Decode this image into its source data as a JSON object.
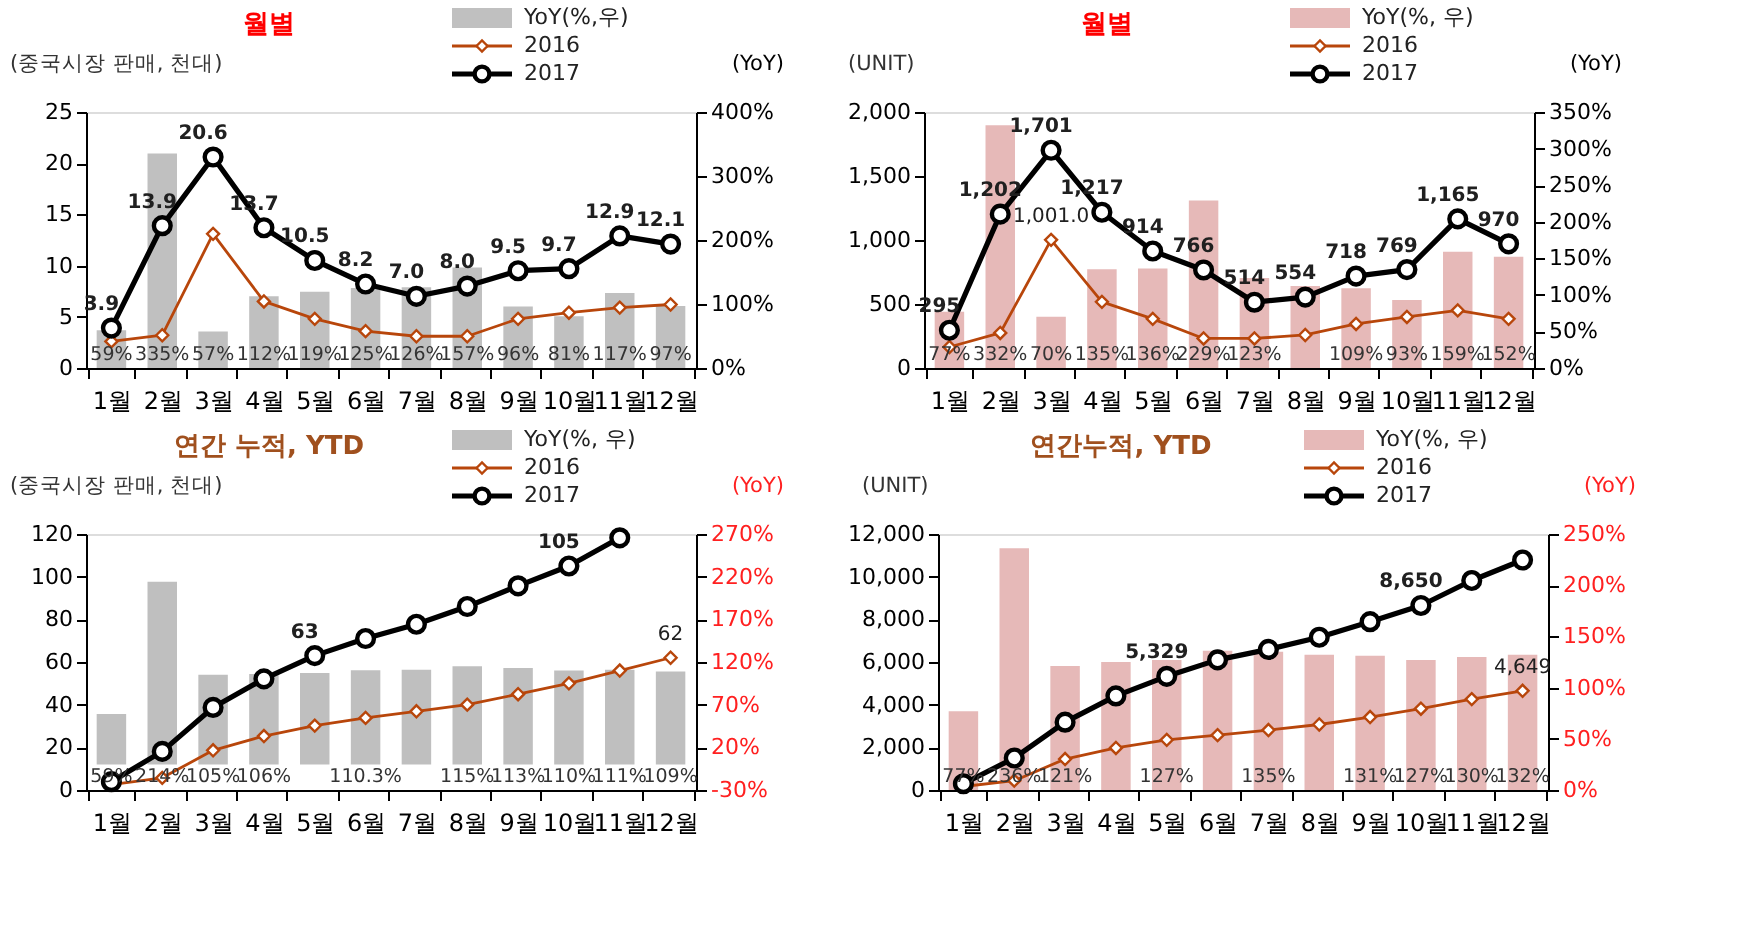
{
  "chart_data": [
    {
      "type": "line",
      "title": "월별",
      "ylabel": "(중국시장 판매, 천대)",
      "y2label": "(YoY)",
      "legend": "top right",
      "categories": [
        "1월",
        "2월",
        "3월",
        "4월",
        "5월",
        "6월",
        "7월",
        "8월",
        "9월",
        "10월",
        "11월",
        "12월"
      ],
      "ylim": [
        0,
        25
      ],
      "yticks": [
        0,
        5,
        10,
        15,
        20,
        25
      ],
      "y2lim": [
        0,
        400
      ],
      "y2ticks": [
        {
          "value": 0,
          "label": "0%"
        },
        {
          "value": 100,
          "label": "100%"
        },
        {
          "value": 200,
          "label": "200%"
        },
        {
          "value": 300,
          "label": "300%"
        },
        {
          "value": 400,
          "label": "400%"
        }
      ],
      "series": [
        {
          "name": "YoY(%,우)",
          "type": "bar",
          "axis": "y2",
          "color": "#c0c0c0",
          "values": [
            59,
            335,
            57,
            112,
            119,
            125,
            126,
            157,
            96,
            81,
            117,
            97
          ],
          "value_labels": [
            "59%",
            "335%",
            "57%",
            "112%",
            "119%",
            "125%",
            "126%",
            "157%",
            "96%",
            "81%",
            "117%",
            "97%"
          ]
        },
        {
          "name": "2016",
          "marker": "diamond",
          "color": "#b8460b",
          "values": [
            2.6,
            3.2,
            13.1,
            6.5,
            4.8,
            3.6,
            3.1,
            3.1,
            4.8,
            5.4,
            5.9,
            6.2
          ]
        },
        {
          "name": "2017",
          "marker": "circle",
          "color": "#000000",
          "values": [
            3.9,
            13.9,
            20.6,
            13.7,
            10.5,
            8.2,
            7.0,
            8.0,
            9.5,
            9.7,
            12.9,
            12.1
          ],
          "value_labels": [
            "3.9",
            "13.9",
            "20.6",
            "13.7",
            "10.5",
            "8.2",
            "7.0",
            "8.0",
            "9.5",
            "9.7",
            "12.9",
            "12.1"
          ]
        }
      ]
    },
    {
      "type": "line",
      "title": "월별",
      "ylabel": "(UNIT)",
      "y2label": "(YoY)",
      "legend": "top right",
      "categories": [
        "1월",
        "2월",
        "3월",
        "4월",
        "5월",
        "6월",
        "7월",
        "8월",
        "9월",
        "10월",
        "11월",
        "12월"
      ],
      "ylim": [
        0,
        2000
      ],
      "yticks": [
        0,
        500,
        {
          "value": 1000,
          "label": "1,000"
        },
        {
          "value": 1500,
          "label": "1,500"
        },
        {
          "value": 2000,
          "label": "2,000"
        }
      ],
      "y2lim": [
        0,
        350
      ],
      "y2ticks": [
        {
          "value": 0,
          "label": "0%"
        },
        {
          "value": 50,
          "label": "50%"
        },
        {
          "value": 100,
          "label": "100%"
        },
        {
          "value": 150,
          "label": "150%"
        },
        {
          "value": 200,
          "label": "200%"
        },
        {
          "value": 250,
          "label": "250%"
        },
        {
          "value": 300,
          "label": "300%"
        },
        {
          "value": 350,
          "label": "350%"
        }
      ],
      "series": [
        {
          "name": "YoY(%, 우)",
          "type": "bar",
          "axis": "y2",
          "color": "#e6b9b8",
          "values": [
            77,
            332,
            70,
            135,
            136,
            229,
            123,
            112,
            109,
            93,
            159,
            152
          ],
          "value_labels": [
            "77%",
            "332%",
            "70%",
            "135%",
            "136%",
            "229%",
            "123%",
            null,
            "109%",
            "93%",
            "159%",
            "152%"
          ]
        },
        {
          "name": "2016",
          "marker": "diamond",
          "color": "#b8460b",
          "values": [
            164,
            274,
            1001.0,
            517,
            384,
            231,
            231,
            258,
            344,
            399,
            450,
            384
          ],
          "value_labels": [
            null,
            null,
            "1,001.0",
            null,
            null,
            null,
            null,
            null,
            null,
            null,
            null,
            null
          ]
        },
        {
          "name": "2017",
          "marker": "circle",
          "color": "#000000",
          "values": [
            295,
            1202,
            1701,
            1217,
            914,
            766,
            514,
            554,
            718,
            769,
            1165,
            970
          ],
          "value_labels": [
            "295",
            "1,202",
            "1,701",
            "1,217",
            "914",
            "766",
            "514",
            "554",
            "718",
            "769",
            "1,165",
            "970"
          ]
        }
      ]
    },
    {
      "type": "line",
      "title": "연간 누적, YTD",
      "ylabel": "(중국시장 판매, 천대)",
      "y2label": "(YoY)",
      "legend": "top right",
      "categories": [
        "1월",
        "2월",
        "3월",
        "4월",
        "5월",
        "6월",
        "7월",
        "8월",
        "9월",
        "10월",
        "11월",
        "12월"
      ],
      "ylim": [
        0,
        120
      ],
      "yticks": [
        0,
        20,
        40,
        60,
        80,
        100,
        120
      ],
      "y2lim": [
        -30,
        270
      ],
      "y2ticks": [
        {
          "value": -30,
          "label": "-30%"
        },
        {
          "value": 20,
          "label": "20%"
        },
        {
          "value": 70,
          "label": "70%"
        },
        {
          "value": 120,
          "label": "120%"
        },
        {
          "value": 170,
          "label": "170%"
        },
        {
          "value": 220,
          "label": "220%"
        },
        {
          "value": 270,
          "label": "270%"
        }
      ],
      "series": [
        {
          "name": "YoY(%, 우)",
          "type": "bar",
          "axis": "y2",
          "color": "#bfbfbf",
          "values": [
            59,
            214,
            105,
            106,
            107,
            110.3,
            111,
            115,
            113,
            110,
            111,
            109
          ],
          "value_labels": [
            "59%",
            "214%",
            "105%",
            "106%",
            null,
            "110.3%",
            null,
            "115%",
            "113%",
            "110%",
            "111%",
            "109%"
          ]
        },
        {
          "name": "2016",
          "marker": "diamond",
          "color": "#b8460b",
          "values": [
            2.5,
            5.7,
            18.6,
            25.3,
            30.2,
            33.8,
            36.9,
            40,
            44.9,
            50,
            56,
            62
          ],
          "value_labels": [
            null,
            null,
            null,
            null,
            null,
            null,
            null,
            null,
            null,
            null,
            null,
            "62"
          ]
        },
        {
          "name": "2017",
          "marker": "circle",
          "color": "#000000",
          "values": [
            3.9,
            18.1,
            38.7,
            52.1,
            63,
            71,
            77.7,
            86,
            95.7,
            105,
            118.2,
            null
          ],
          "value_labels": [
            null,
            null,
            null,
            null,
            "63",
            null,
            null,
            null,
            null,
            "105",
            null,
            null
          ]
        }
      ]
    },
    {
      "type": "line",
      "title": "연간누적, YTD",
      "ylabel": "(UNIT)",
      "y2label": "(YoY)",
      "legend": "top right",
      "categories": [
        "1월",
        "2월",
        "3월",
        "4월",
        "5월",
        "6월",
        "7월",
        "8월",
        "9월",
        "10월",
        "11월",
        "12월"
      ],
      "ylim": [
        0,
        12000
      ],
      "yticks": [
        0,
        {
          "value": 2000,
          "label": "2,000"
        },
        {
          "value": 4000,
          "label": "4,000"
        },
        {
          "value": 6000,
          "label": "6,000"
        },
        {
          "value": 8000,
          "label": "8,000"
        },
        {
          "value": 10000,
          "label": "10,000"
        },
        {
          "value": 12000,
          "label": "12,000"
        }
      ],
      "y2lim": [
        0,
        250
      ],
      "y2ticks": [
        {
          "value": 0,
          "label": "0%"
        },
        {
          "value": 50,
          "label": "50%"
        },
        {
          "value": 100,
          "label": "100%"
        },
        {
          "value": 150,
          "label": "150%"
        },
        {
          "value": 200,
          "label": "200%"
        },
        {
          "value": 250,
          "label": "250%"
        }
      ],
      "series": [
        {
          "name": "YoY(%, 우)",
          "type": "bar",
          "axis": "y2",
          "color": "#e6b9b8",
          "values": [
            77,
            236,
            121,
            125,
            127,
            136,
            135,
            132,
            131,
            127,
            130,
            132
          ],
          "value_labels": [
            "77%",
            "236%",
            "121%",
            null,
            "127%",
            null,
            "135%",
            null,
            "131%",
            "127%",
            "130%",
            "132%"
          ]
        },
        {
          "name": "2016",
          "marker": "diamond",
          "color": "#b8460b",
          "values": [
            164,
            438,
            1450,
            1970,
            2350,
            2570,
            2810,
            3070,
            3420,
            3810,
            4260,
            4649
          ],
          "value_labels": [
            null,
            null,
            null,
            null,
            null,
            null,
            null,
            null,
            null,
            null,
            null,
            "4,649"
          ]
        },
        {
          "name": "2017",
          "marker": "circle",
          "color": "#000000",
          "values": [
            295,
            1500,
            3180,
            4410,
            5329,
            6100,
            6590,
            7160,
            7890,
            8650,
            9820,
            10780
          ],
          "value_labels": [
            null,
            null,
            null,
            null,
            "5,329",
            null,
            null,
            null,
            null,
            "8,650",
            null,
            null
          ]
        }
      ]
    }
  ]
}
